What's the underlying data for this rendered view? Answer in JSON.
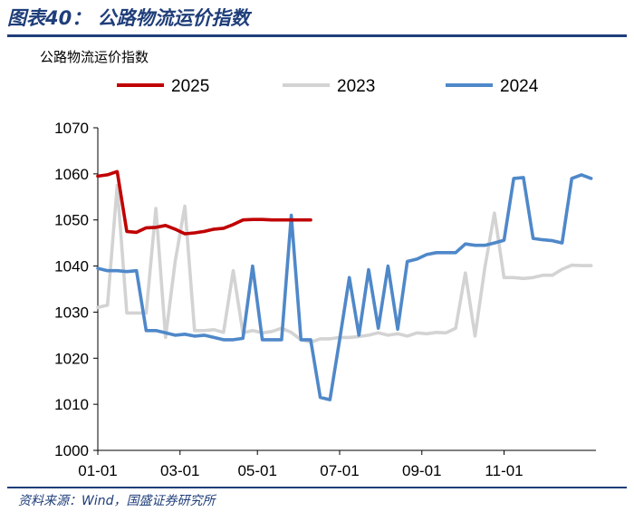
{
  "figure": {
    "title": "图表40：  公路物流运价指数",
    "source": "资料来源：Wind，国盛证券研究所"
  },
  "chart_data": {
    "type": "line",
    "title": "公路物流运价指数",
    "xlabel": "",
    "ylabel": "",
    "ylim": [
      1000,
      1070
    ],
    "yticks": [
      1000,
      1010,
      1020,
      1030,
      1040,
      1050,
      1060,
      1070
    ],
    "x_axis": {
      "unit": "week",
      "ticks": [
        "01-01",
        "03-01",
        "05-01",
        "07-01",
        "09-01",
        "11-01"
      ],
      "tick_weeks": [
        1,
        9.5,
        17.5,
        26,
        34.5,
        43
      ]
    },
    "grid": false,
    "legend": "top",
    "series": [
      {
        "name": "2025",
        "color": "#c00000",
        "x": [
          1,
          2,
          3,
          4,
          5,
          6,
          7,
          8,
          9,
          10,
          11,
          12,
          13,
          14,
          15,
          16,
          17,
          18,
          19,
          20,
          21,
          22,
          23
        ],
        "values": [
          1059.5,
          1059.8,
          1060.5,
          1047.5,
          1047.3,
          1048.3,
          1048.4,
          1048.8,
          1048,
          1047,
          1047.2,
          1047.5,
          1048,
          1048.2,
          1049,
          1050,
          1050.1,
          1050.1,
          1050,
          1050,
          1050,
          1050,
          1050
        ]
      },
      {
        "name": "2023",
        "color": "#d3d3d3",
        "x": [
          1,
          2,
          3,
          4,
          5,
          6,
          7,
          8,
          9,
          10,
          11,
          12,
          13,
          14,
          15,
          16,
          17,
          18,
          19,
          20,
          21,
          22,
          23,
          24,
          25,
          26,
          27,
          28,
          29,
          30,
          31,
          32,
          33,
          34,
          35,
          36,
          37,
          38,
          39,
          40,
          41,
          42,
          43,
          44,
          45,
          46,
          47,
          48,
          49,
          50,
          51,
          52
        ],
        "values": [
          1031,
          1031.5,
          1057.5,
          1029.8,
          1029.8,
          1029.8,
          1052.5,
          1024.5,
          1041,
          1053,
          1026,
          1026,
          1026.2,
          1025.6,
          1039,
          1025.5,
          1026,
          1025.5,
          1025.8,
          1026.5,
          1025.6,
          1024,
          1023.5,
          1024.2,
          1024.2,
          1024.5,
          1024.5,
          1024.7,
          1025,
          1025.5,
          1025,
          1025.3,
          1024.8,
          1025.5,
          1025.3,
          1025.6,
          1025.5,
          1026.5,
          1038.5,
          1024.8,
          1039.5,
          1051.5,
          1037.5,
          1037.5,
          1037.3,
          1037.5,
          1038,
          1038,
          1039.3,
          1040.2,
          1040.1,
          1040.1
        ]
      },
      {
        "name": "2024",
        "color": "#4f88c9",
        "x": [
          1,
          2,
          3,
          4,
          5,
          6,
          7,
          8,
          9,
          10,
          11,
          12,
          13,
          14,
          15,
          16,
          17,
          18,
          19,
          20,
          21,
          22,
          23,
          24,
          25,
          26,
          27,
          28,
          29,
          30,
          31,
          32,
          33,
          34,
          35,
          36,
          37,
          38,
          39,
          40,
          41,
          42,
          43,
          44,
          45,
          46,
          47,
          48,
          49,
          50,
          51,
          52
        ],
        "values": [
          1039.5,
          1039,
          1039,
          1038.8,
          1039,
          1026,
          1026,
          1025.5,
          1025,
          1025.2,
          1024.8,
          1025,
          1024.5,
          1024,
          1024,
          1024.3,
          1040,
          1024,
          1024,
          1024,
          1051,
          1024,
          1024,
          1011.5,
          1011,
          1024,
          1037.5,
          1025,
          1039.2,
          1026.5,
          1040,
          1026.3,
          1041,
          1041.5,
          1042.5,
          1042.9,
          1042.9,
          1042.9,
          1044.8,
          1044.5,
          1044.5,
          1045,
          1045.6,
          1059,
          1059.2,
          1046,
          1045.7,
          1045.5,
          1045,
          1059,
          1059.8,
          1059
        ]
      }
    ]
  }
}
